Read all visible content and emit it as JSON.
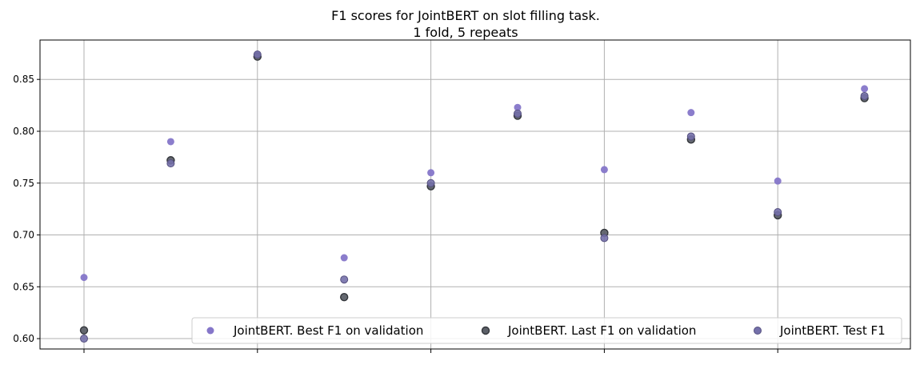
{
  "chart_data": {
    "type": "scatter",
    "title_lines": [
      "F1 scores for JointBERT on slot filling task.",
      "1 fold, 5 repeats"
    ],
    "xlabel": "",
    "ylabel": "",
    "ylim": [
      0.59,
      0.888
    ],
    "yticks": [
      "0.60",
      "0.65",
      "0.70",
      "0.75",
      "0.80",
      "0.85"
    ],
    "xticks_count": 5,
    "grid": true,
    "legend_placement": "lower-right",
    "colors": {
      "best": "#8576c9",
      "last": "#5c6068",
      "test": "#7470aa",
      "grid": "#b0b0b0",
      "axis": "#000000"
    },
    "series": [
      {
        "name": "JointBERT. Best F1 on validation",
        "key": "best",
        "x": [
          0,
          1,
          2,
          3,
          4,
          5,
          6,
          7,
          8,
          9
        ],
        "values": [
          0.659,
          0.79,
          0.874,
          0.678,
          0.76,
          0.823,
          0.763,
          0.818,
          0.752,
          0.841
        ]
      },
      {
        "name": "JointBERT. Last F1 on validation",
        "key": "last",
        "x": [
          0,
          1,
          2,
          3,
          4,
          5,
          6,
          7,
          8,
          9
        ],
        "values": [
          0.608,
          0.772,
          0.872,
          0.64,
          0.747,
          0.815,
          0.702,
          0.792,
          0.719,
          0.832
        ]
      },
      {
        "name": "JointBERT. Test F1",
        "key": "test",
        "x": [
          0,
          1,
          2,
          3,
          4,
          5,
          6,
          7,
          8,
          9
        ],
        "values": [
          0.6,
          0.769,
          0.874,
          0.657,
          0.75,
          0.817,
          0.697,
          0.795,
          0.722,
          0.834
        ]
      }
    ]
  }
}
